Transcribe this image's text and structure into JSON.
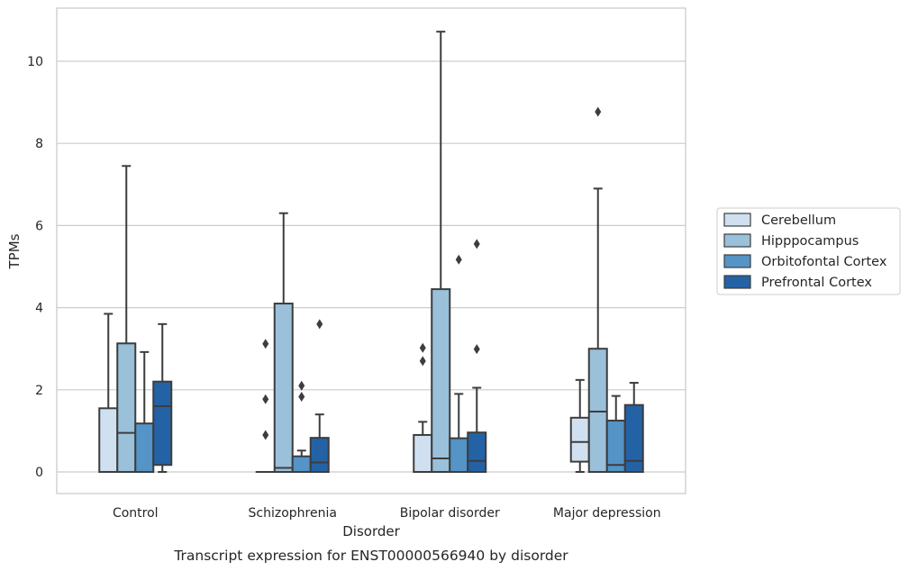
{
  "chart_data": {
    "type": "box",
    "title": "",
    "xlabel": "Disorder",
    "ylabel": "TPMs",
    "caption": "Transcript expression for ENST00000566940 by disorder",
    "ylim": [
      -0.5,
      11.3
    ],
    "yticks": [
      0,
      2,
      4,
      6,
      8,
      10
    ],
    "grid": "horizontal",
    "legend_position": "right",
    "categories": [
      "Control",
      "Schizophrenia",
      "Bipolar disorder",
      "Major depression"
    ],
    "series": [
      {
        "name": "Cerebellum",
        "color": "#d0e0f0",
        "boxes": [
          {
            "whislo": 0,
            "q1": 0,
            "med": 0,
            "q3": 1.55,
            "whishi": 3.85,
            "fliers": []
          },
          {
            "whislo": 0,
            "q1": 0,
            "med": 0,
            "q3": 0,
            "whishi": 0,
            "fliers": [
              0.9,
              1.77,
              3.12
            ]
          },
          {
            "whislo": 0,
            "q1": 0,
            "med": 0,
            "q3": 0.9,
            "whishi": 1.22,
            "fliers": [
              2.7,
              3.02
            ]
          },
          {
            "whislo": 0,
            "q1": 0.25,
            "med": 0.73,
            "q3": 1.32,
            "whishi": 2.24,
            "fliers": []
          }
        ]
      },
      {
        "name": "Hipppocampus",
        "color": "#9ac0da",
        "boxes": [
          {
            "whislo": 0,
            "q1": 0,
            "med": 0.95,
            "q3": 3.13,
            "whishi": 7.45,
            "fliers": []
          },
          {
            "whislo": 0,
            "q1": 0,
            "med": 0.1,
            "q3": 4.1,
            "whishi": 6.3,
            "fliers": []
          },
          {
            "whislo": 0,
            "q1": 0,
            "med": 0.33,
            "q3": 4.45,
            "whishi": 10.72,
            "fliers": []
          },
          {
            "whislo": 0,
            "q1": 0,
            "med": 1.47,
            "q3": 3.0,
            "whishi": 6.9,
            "fliers": [
              8.77
            ]
          }
        ]
      },
      {
        "name": "Orbitofontal Cortex",
        "color": "#5494c6",
        "boxes": [
          {
            "whislo": 0,
            "q1": 0,
            "med": 0,
            "q3": 1.18,
            "whishi": 2.92,
            "fliers": []
          },
          {
            "whislo": 0,
            "q1": 0,
            "med": 0,
            "q3": 0.38,
            "whishi": 0.52,
            "fliers": [
              1.83,
              2.1
            ]
          },
          {
            "whislo": 0,
            "q1": 0,
            "med": 0,
            "q3": 0.82,
            "whishi": 1.9,
            "fliers": [
              5.17
            ]
          },
          {
            "whislo": 0,
            "q1": 0,
            "med": 0.17,
            "q3": 1.25,
            "whishi": 1.85,
            "fliers": []
          }
        ]
      },
      {
        "name": "Prefrontal Cortex",
        "color": "#2462a6",
        "boxes": [
          {
            "whislo": 0,
            "q1": 0.17,
            "med": 1.6,
            "q3": 2.2,
            "whishi": 3.6,
            "fliers": []
          },
          {
            "whislo": 0,
            "q1": 0,
            "med": 0.23,
            "q3": 0.83,
            "whishi": 1.4,
            "fliers": [
              3.6
            ]
          },
          {
            "whislo": 0,
            "q1": 0,
            "med": 0.27,
            "q3": 0.96,
            "whishi": 2.05,
            "fliers": [
              2.99,
              5.55
            ]
          },
          {
            "whislo": 0,
            "q1": 0,
            "med": 0.27,
            "q3": 1.63,
            "whishi": 2.17,
            "fliers": []
          }
        ]
      }
    ]
  }
}
